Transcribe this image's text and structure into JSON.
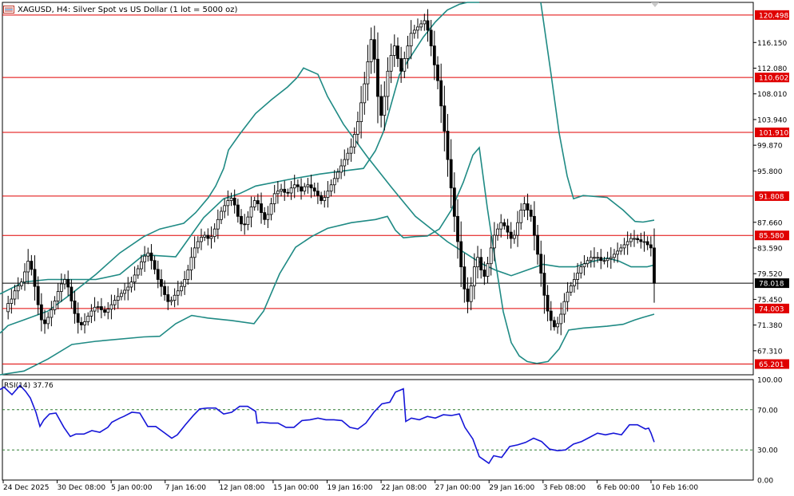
{
  "title": "XAGUSD, H4:  Silver Spot vs US Dollar (1 lot = 5000 oz)",
  "icons": {
    "chart_type": "chart-window-icon"
  },
  "colors": {
    "candle": "#000000",
    "bollinger": "#1f8a84",
    "hlines": "#e00000",
    "rsi": "#1515d8",
    "rsi_levels": "#2e7d32",
    "current_price_line": "#000000",
    "price_badge": "#e00000",
    "current_badge": "#000000"
  },
  "chart_data": [
    {
      "type": "candlestick",
      "symbol": "XAGUSD",
      "timeframe": "H4",
      "y_ticks": [
        "116.150",
        "112.080",
        "108.010",
        "103.940",
        "99.870",
        "95.800",
        "87.660",
        "83.590",
        "79.520",
        "75.450",
        "71.380",
        "67.310"
      ],
      "x_ticks": [
        "24 Dec 2025",
        "30 Dec 08:00",
        "5 Jan 00:00",
        "7 Jan 16:00",
        "12 Jan 08:00",
        "15 Jan 00:00",
        "19 Jan 16:00",
        "22 Jan 08:00",
        "27 Jan 00:00",
        "29 Jan 16:00",
        "3 Feb 08:00",
        "6 Feb 00:00",
        "10 Feb 16:00"
      ],
      "ylim": [
        63.5,
        122.5
      ],
      "horizontal_levels": [
        "120.498",
        "110.602",
        "101.910",
        "91.808",
        "85.580",
        "74.003",
        "65.201"
      ],
      "current_price": "78.018",
      "price_path": [
        73.5,
        74.8,
        75.5,
        76.8,
        77.6,
        78.2,
        79.8,
        81.5,
        80.2,
        77.5,
        74.6,
        72.2,
        71.6,
        72.6,
        73.8,
        75.2,
        76.7,
        77.9,
        78.6,
        77.4,
        75.2,
        73.2,
        71.8,
        71.4,
        71.9,
        72.8,
        73.6,
        74.2,
        74.3,
        73.8,
        73.4,
        73.9,
        74.6,
        75.3,
        75.9,
        76.4,
        76.9,
        77.4,
        78.2,
        79.3,
        80.3,
        81.4,
        82.3,
        82.8,
        81.6,
        80.2,
        78.6,
        77.5,
        76.2,
        75.1,
        75.3,
        76.1,
        76.8,
        77.5,
        78.6,
        80.1,
        82.1,
        83.6,
        84.6,
        85.3,
        85.6,
        85.1,
        85.4,
        86.6,
        88.1,
        89.4,
        90.3,
        91.1,
        91.5,
        90.4,
        88.6,
        87.4,
        87.3,
        88.5,
        90.1,
        91.1,
        90.6,
        89.2,
        88.1,
        88.9,
        90.6,
        92.2,
        92.6,
        92.9,
        92.4,
        92.3,
        93.1,
        93.6,
        93.3,
        92.6,
        93.3,
        93.6,
        93.1,
        92.6,
        91.9,
        91.1,
        91.6,
        92.6,
        93.6,
        94.6,
        95.6,
        96.6,
        97.6,
        98.6,
        99.6,
        101.6,
        103.6,
        106.6,
        109.6,
        113.1,
        116.6,
        113.5,
        107.6,
        104.6,
        107.6,
        111.6,
        114.1,
        115.6,
        113.6,
        111.6,
        113.6,
        115.6,
        117.6,
        118.1,
        118.6,
        119.1,
        119.6,
        118.1,
        115.6,
        112.6,
        110.1,
        106.1,
        102.1,
        97.6,
        93.1,
        88.6,
        84.6,
        80.6,
        77.1,
        75.1,
        77.6,
        80.6,
        82.1,
        80.1,
        79.1,
        81.1,
        83.6,
        85.6,
        86.6,
        87.6,
        87.1,
        86.1,
        85.1,
        85.6,
        87.6,
        89.6,
        90.6,
        89.6,
        88.6,
        85.6,
        82.6,
        79.6,
        76.1,
        73.6,
        72.1,
        71.1,
        71.6,
        73.1,
        75.1,
        76.6,
        77.6,
        78.6,
        79.6,
        80.6,
        81.1,
        81.6,
        82.1,
        82.1,
        82.1,
        81.6,
        81.6,
        81.9,
        82.1,
        82.6,
        83.1,
        83.6,
        84.1,
        84.6,
        85.1,
        85.1,
        84.9,
        84.6,
        84.6,
        84.1,
        83.6,
        78.0
      ],
      "bollinger": {
        "middle": [
          [
            0,
            70.1
          ],
          [
            10,
            71.3
          ],
          [
            30,
            72.2
          ],
          [
            60,
            73.6
          ],
          [
            90,
            76.4
          ],
          [
            120,
            79.4
          ],
          [
            150,
            82.8
          ],
          [
            180,
            85.4
          ],
          [
            200,
            86.6
          ],
          [
            230,
            87.5
          ],
          [
            245,
            89.2
          ],
          [
            261,
            91.6
          ],
          [
            270,
            93.4
          ],
          [
            280,
            96.2
          ],
          [
            286,
            99.1
          ],
          [
            300,
            101.6
          ],
          [
            320,
            104.9
          ],
          [
            340,
            107.1
          ],
          [
            360,
            109.1
          ],
          [
            372,
            110.6
          ],
          [
            380,
            112.1
          ],
          [
            398,
            111.1
          ],
          [
            410,
            107.6
          ],
          [
            430,
            103.2
          ],
          [
            460,
            98.0
          ],
          [
            490,
            93.2
          ],
          [
            520,
            88.6
          ],
          [
            560,
            84.6
          ],
          [
            592,
            82.0
          ],
          [
            605,
            81.0
          ],
          [
            620,
            80.1
          ],
          [
            640,
            79.2
          ],
          [
            660,
            80.1
          ],
          [
            680,
            81.0
          ],
          [
            700,
            80.6
          ],
          [
            720,
            80.6
          ],
          [
            740,
            81.4
          ],
          [
            760,
            82.0
          ],
          [
            775,
            81.5
          ],
          [
            790,
            80.6
          ],
          [
            810,
            80.6
          ],
          [
            819,
            80.9
          ]
        ],
        "upper": [
          [
            0,
            76.3
          ],
          [
            30,
            78.2
          ],
          [
            60,
            78.6
          ],
          [
            90,
            78.6
          ],
          [
            120,
            78.6
          ],
          [
            150,
            79.4
          ],
          [
            180,
            82.5
          ],
          [
            220,
            82.2
          ],
          [
            255,
            88.4
          ],
          [
            280,
            91.4
          ],
          [
            300,
            92.2
          ],
          [
            320,
            93.4
          ],
          [
            360,
            94.4
          ],
          [
            400,
            95.3
          ],
          [
            430,
            95.8
          ],
          [
            455,
            96.2
          ],
          [
            470,
            99.0
          ],
          [
            480,
            102.0
          ],
          [
            490,
            106.5
          ],
          [
            500,
            111.0
          ],
          [
            510,
            113.1
          ],
          [
            530,
            117.0
          ],
          [
            545,
            119.4
          ],
          [
            560,
            121.3
          ],
          [
            575,
            122.2
          ],
          [
            585,
            122.5
          ],
          [
            600,
            122.5
          ]
        ],
        "upper_right": [
          [
            677,
            122.5
          ],
          [
            690,
            111.0
          ],
          [
            700,
            101.8
          ],
          [
            710,
            95.0
          ],
          [
            718,
            91.4
          ],
          [
            730,
            91.9
          ],
          [
            760,
            91.6
          ],
          [
            780,
            89.6
          ],
          [
            795,
            87.8
          ],
          [
            805,
            87.7
          ],
          [
            819,
            88.0
          ]
        ],
        "lower": [
          [
            0,
            63.5
          ],
          [
            30,
            64.1
          ],
          [
            60,
            66.0
          ],
          [
            90,
            68.3
          ],
          [
            120,
            68.8
          ],
          [
            180,
            69.5
          ],
          [
            200,
            69.6
          ],
          [
            220,
            71.6
          ],
          [
            240,
            72.9
          ],
          [
            260,
            72.5
          ],
          [
            290,
            72.1
          ],
          [
            318,
            71.6
          ],
          [
            330,
            73.6
          ],
          [
            350,
            79.5
          ],
          [
            370,
            83.7
          ],
          [
            390,
            85.4
          ],
          [
            410,
            86.7
          ],
          [
            440,
            87.6
          ],
          [
            470,
            88.1
          ],
          [
            485,
            88.6
          ],
          [
            495,
            86.4
          ],
          [
            505,
            85.2
          ],
          [
            520,
            85.4
          ],
          [
            535,
            85.5
          ],
          [
            550,
            86.6
          ],
          [
            565,
            89.6
          ],
          [
            580,
            94.0
          ],
          [
            592,
            98.3
          ],
          [
            600,
            99.5
          ],
          [
            610,
            90.0
          ],
          [
            620,
            81.6
          ],
          [
            630,
            73.5
          ],
          [
            640,
            68.6
          ],
          [
            650,
            66.5
          ],
          [
            660,
            65.6
          ],
          [
            672,
            65.3
          ],
          [
            686,
            65.6
          ],
          [
            700,
            67.6
          ],
          [
            712,
            70.6
          ],
          [
            730,
            70.9
          ],
          [
            760,
            71.2
          ],
          [
            780,
            71.5
          ],
          [
            795,
            72.2
          ],
          [
            805,
            72.6
          ],
          [
            819,
            73.1
          ]
        ]
      }
    },
    {
      "type": "line",
      "title": "RSI(14) 37.76",
      "ylim": [
        0,
        100
      ],
      "y_ticks": [
        "100.00",
        "70.00",
        "30.00",
        "0.00"
      ],
      "levels": [
        70,
        30
      ],
      "series": [
        {
          "points": [
            [
              0,
              90.0
            ],
            [
              5,
              92.5
            ],
            [
              15,
              85.0
            ],
            [
              25,
              94.2
            ],
            [
              32,
              88.3
            ],
            [
              38,
              81.7
            ],
            [
              45,
              67.5
            ],
            [
              50,
              53.3
            ],
            [
              55,
              60.0
            ],
            [
              62,
              65.8
            ],
            [
              70,
              66.7
            ],
            [
              80,
              52.5
            ],
            [
              88,
              43.3
            ],
            [
              95,
              45.8
            ],
            [
              105,
              45.8
            ],
            [
              115,
              49.2
            ],
            [
              125,
              47.5
            ],
            [
              135,
              52.5
            ],
            [
              140,
              57.5
            ],
            [
              150,
              61.7
            ],
            [
              155,
              63.3
            ],
            [
              165,
              67.5
            ],
            [
              175,
              66.7
            ],
            [
              185,
              53.3
            ],
            [
              195,
              53.3
            ],
            [
              205,
              47.5
            ],
            [
              215,
              41.7
            ],
            [
              222,
              45.0
            ],
            [
              232,
              55.0
            ],
            [
              242,
              64.2
            ],
            [
              250,
              70.8
            ],
            [
              260,
              71.7
            ],
            [
              270,
              71.7
            ],
            [
              280,
              65.8
            ],
            [
              290,
              67.5
            ],
            [
              300,
              73.3
            ],
            [
              310,
              73.3
            ],
            [
              320,
              68.3
            ],
            [
              322,
              56.7
            ],
            [
              328,
              57.5
            ],
            [
              338,
              56.7
            ],
            [
              348,
              56.7
            ],
            [
              358,
              52.5
            ],
            [
              368,
              52.5
            ],
            [
              378,
              59.2
            ],
            [
              388,
              60.0
            ],
            [
              398,
              61.7
            ],
            [
              408,
              60.0
            ],
            [
              418,
              60.0
            ],
            [
              428,
              59.2
            ],
            [
              438,
              52.5
            ],
            [
              448,
              50.8
            ],
            [
              458,
              56.7
            ],
            [
              468,
              67.5
            ],
            [
              478,
              75.8
            ],
            [
              488,
              77.5
            ],
            [
              495,
              87.5
            ],
            [
              505,
              90.8
            ],
            [
              508,
              58.3
            ],
            [
              515,
              61.7
            ],
            [
              525,
              60.0
            ],
            [
              535,
              63.3
            ],
            [
              545,
              61.7
            ],
            [
              555,
              65.0
            ],
            [
              565,
              64.2
            ],
            [
              575,
              65.8
            ],
            [
              582,
              52.5
            ],
            [
              592,
              40.8
            ],
            [
              600,
              23.3
            ],
            [
              606,
              20.0
            ],
            [
              612,
              16.7
            ],
            [
              618,
              24.2
            ],
            [
              628,
              22.5
            ],
            [
              638,
              33.3
            ],
            [
              648,
              35.0
            ],
            [
              658,
              37.5
            ],
            [
              668,
              41.7
            ],
            [
              678,
              38.3
            ],
            [
              688,
              30.8
            ],
            [
              698,
              29.2
            ],
            [
              708,
              30.0
            ],
            [
              718,
              35.8
            ],
            [
              728,
              38.3
            ],
            [
              738,
              42.5
            ],
            [
              748,
              46.7
            ],
            [
              758,
              45.0
            ],
            [
              768,
              46.7
            ],
            [
              778,
              45.0
            ],
            [
              788,
              55.0
            ],
            [
              798,
              55.0
            ],
            [
              808,
              50.8
            ],
            [
              812,
              51.7
            ],
            [
              815,
              46.7
            ],
            [
              819,
              37.8
            ]
          ]
        }
      ]
    }
  ]
}
